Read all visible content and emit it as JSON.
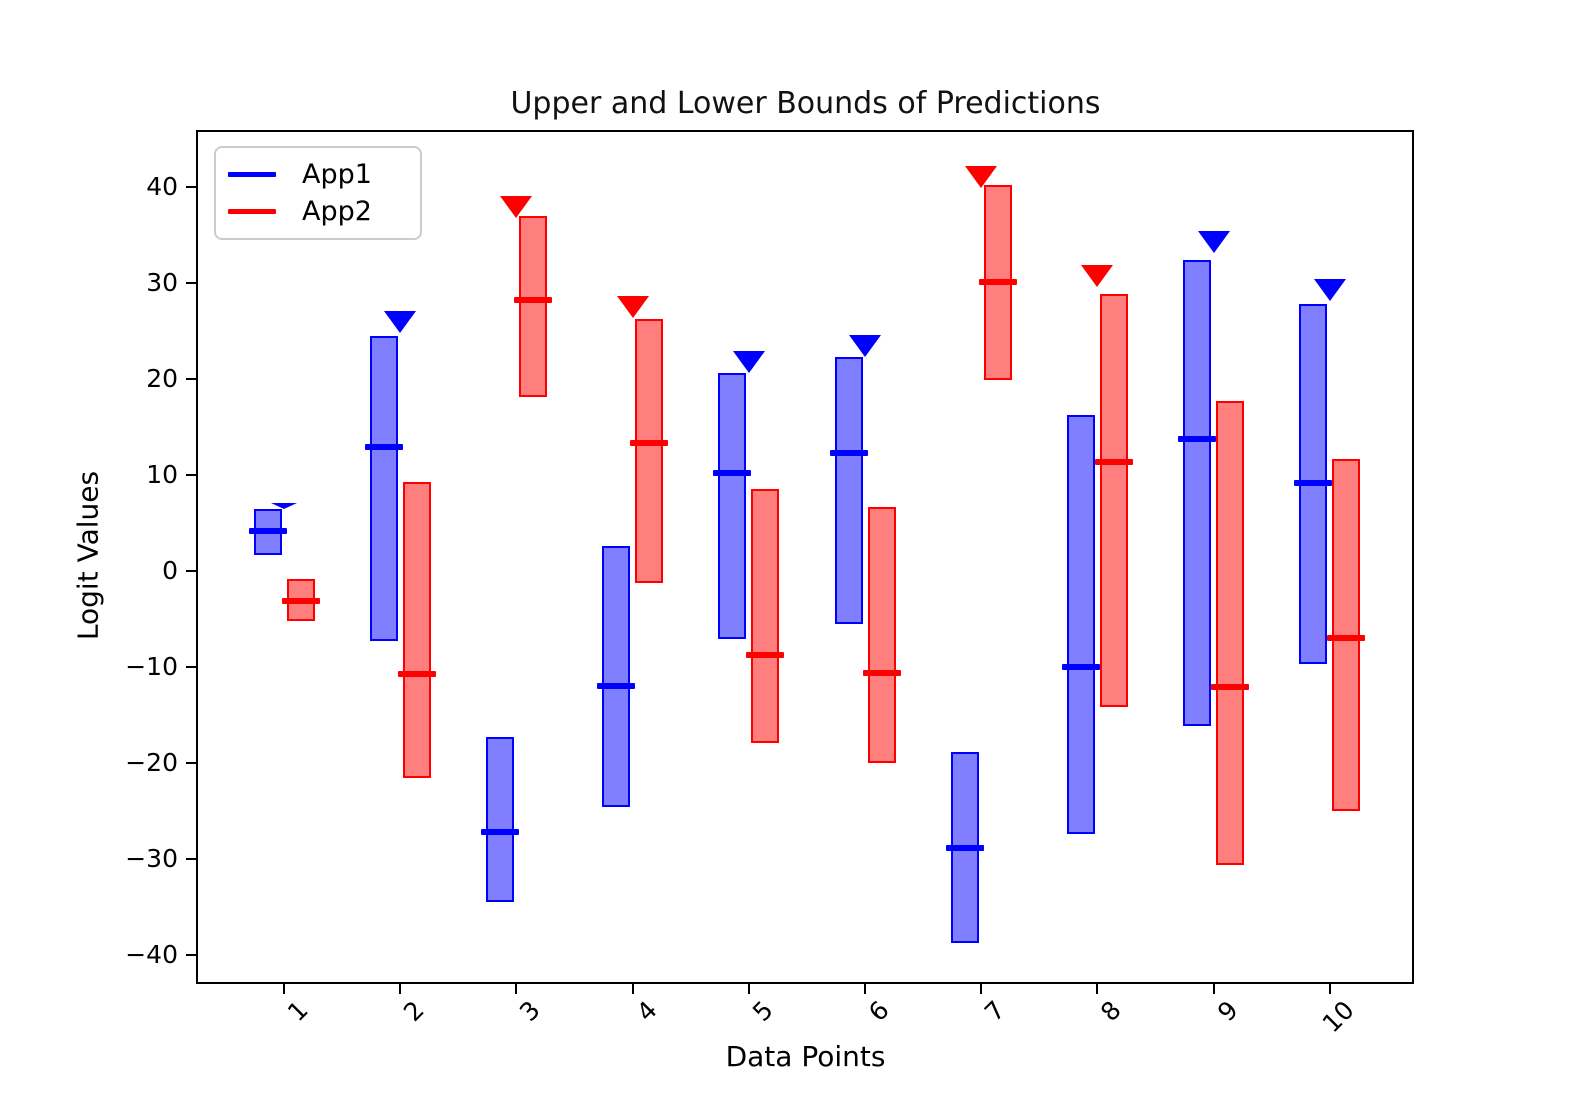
{
  "chart_data": {
    "type": "bar",
    "title": "Upper and Lower Bounds of Predictions",
    "xlabel": "Data Points",
    "ylabel": "Logit Values",
    "categories": [
      "1",
      "2",
      "3",
      "4",
      "5",
      "6",
      "7",
      "8",
      "9",
      "10"
    ],
    "yticks": [
      40,
      30,
      20,
      10,
      0,
      -10,
      -20,
      -30,
      -40
    ],
    "ylim": [
      -42.9,
      45.8
    ],
    "grid": false,
    "legend_position": "upper left",
    "legend": [
      {
        "label": "App1",
        "color": "#0000ff"
      },
      {
        "label": "App2",
        "color": "#ff0000"
      }
    ],
    "note": "Each bar spans lower-to-upper prediction bound; thick tick = median; triangle marks the larger upper bound of the pair",
    "series": [
      {
        "name": "App1",
        "color": "#0000ff",
        "fill": "rgba(0,0,255,0.5)",
        "bars": [
          {
            "category": "1",
            "low": 1.7,
            "high": 6.5,
            "median": 4.2,
            "marker": 6.8,
            "marker_flat": true
          },
          {
            "category": "2",
            "low": -7.3,
            "high": 24.5,
            "median": 12.9,
            "marker": 25.9,
            "marker_flat": false
          },
          {
            "category": "3",
            "low": -34.5,
            "high": -17.3,
            "median": -27.2,
            "marker": null,
            "marker_flat": false
          },
          {
            "category": "4",
            "low": -24.6,
            "high": 2.6,
            "median": -12.0,
            "marker": null,
            "marker_flat": false
          },
          {
            "category": "5",
            "low": -7.1,
            "high": 20.6,
            "median": 10.2,
            "marker": 21.8,
            "marker_flat": false
          },
          {
            "category": "6",
            "low": -5.5,
            "high": 22.3,
            "median": 12.3,
            "marker": 23.4,
            "marker_flat": false
          },
          {
            "category": "7",
            "low": -38.7,
            "high": -18.9,
            "median": -28.9,
            "marker": null,
            "marker_flat": false
          },
          {
            "category": "8",
            "low": -27.4,
            "high": 16.2,
            "median": -10.0,
            "marker": null,
            "marker_flat": false
          },
          {
            "category": "9",
            "low": -16.1,
            "high": 32.4,
            "median": 13.7,
            "marker": 34.3,
            "marker_flat": false
          },
          {
            "category": "10",
            "low": -9.7,
            "high": 27.8,
            "median": 9.2,
            "marker": 29.3,
            "marker_flat": false
          }
        ]
      },
      {
        "name": "App2",
        "color": "#ff0000",
        "fill": "rgba(255,0,0,0.5)",
        "bars": [
          {
            "category": "1",
            "low": -5.2,
            "high": -0.8,
            "median": -3.1,
            "marker": null,
            "marker_flat": false
          },
          {
            "category": "2",
            "low": -21.6,
            "high": 9.3,
            "median": -10.7,
            "marker": null,
            "marker_flat": false
          },
          {
            "category": "3",
            "low": 18.1,
            "high": 37.0,
            "median": 28.2,
            "marker": 37.9,
            "marker_flat": false
          },
          {
            "category": "4",
            "low": -1.3,
            "high": 26.3,
            "median": 13.3,
            "marker": 27.5,
            "marker_flat": false
          },
          {
            "category": "5",
            "low": -17.9,
            "high": 8.5,
            "median": -8.7,
            "marker": null,
            "marker_flat": false
          },
          {
            "category": "6",
            "low": -20.0,
            "high": 6.7,
            "median": -10.6,
            "marker": null,
            "marker_flat": false
          },
          {
            "category": "7",
            "low": 19.9,
            "high": 40.2,
            "median": 30.1,
            "marker": 41.0,
            "marker_flat": false
          },
          {
            "category": "8",
            "low": -14.2,
            "high": 28.9,
            "median": 11.4,
            "marker": 30.7,
            "marker_flat": false
          },
          {
            "category": "9",
            "low": -30.6,
            "high": 17.7,
            "median": -12.1,
            "marker": null,
            "marker_flat": false
          },
          {
            "category": "10",
            "low": -25.0,
            "high": 11.7,
            "median": -7.0,
            "marker": null,
            "marker_flat": false
          }
        ]
      }
    ]
  }
}
